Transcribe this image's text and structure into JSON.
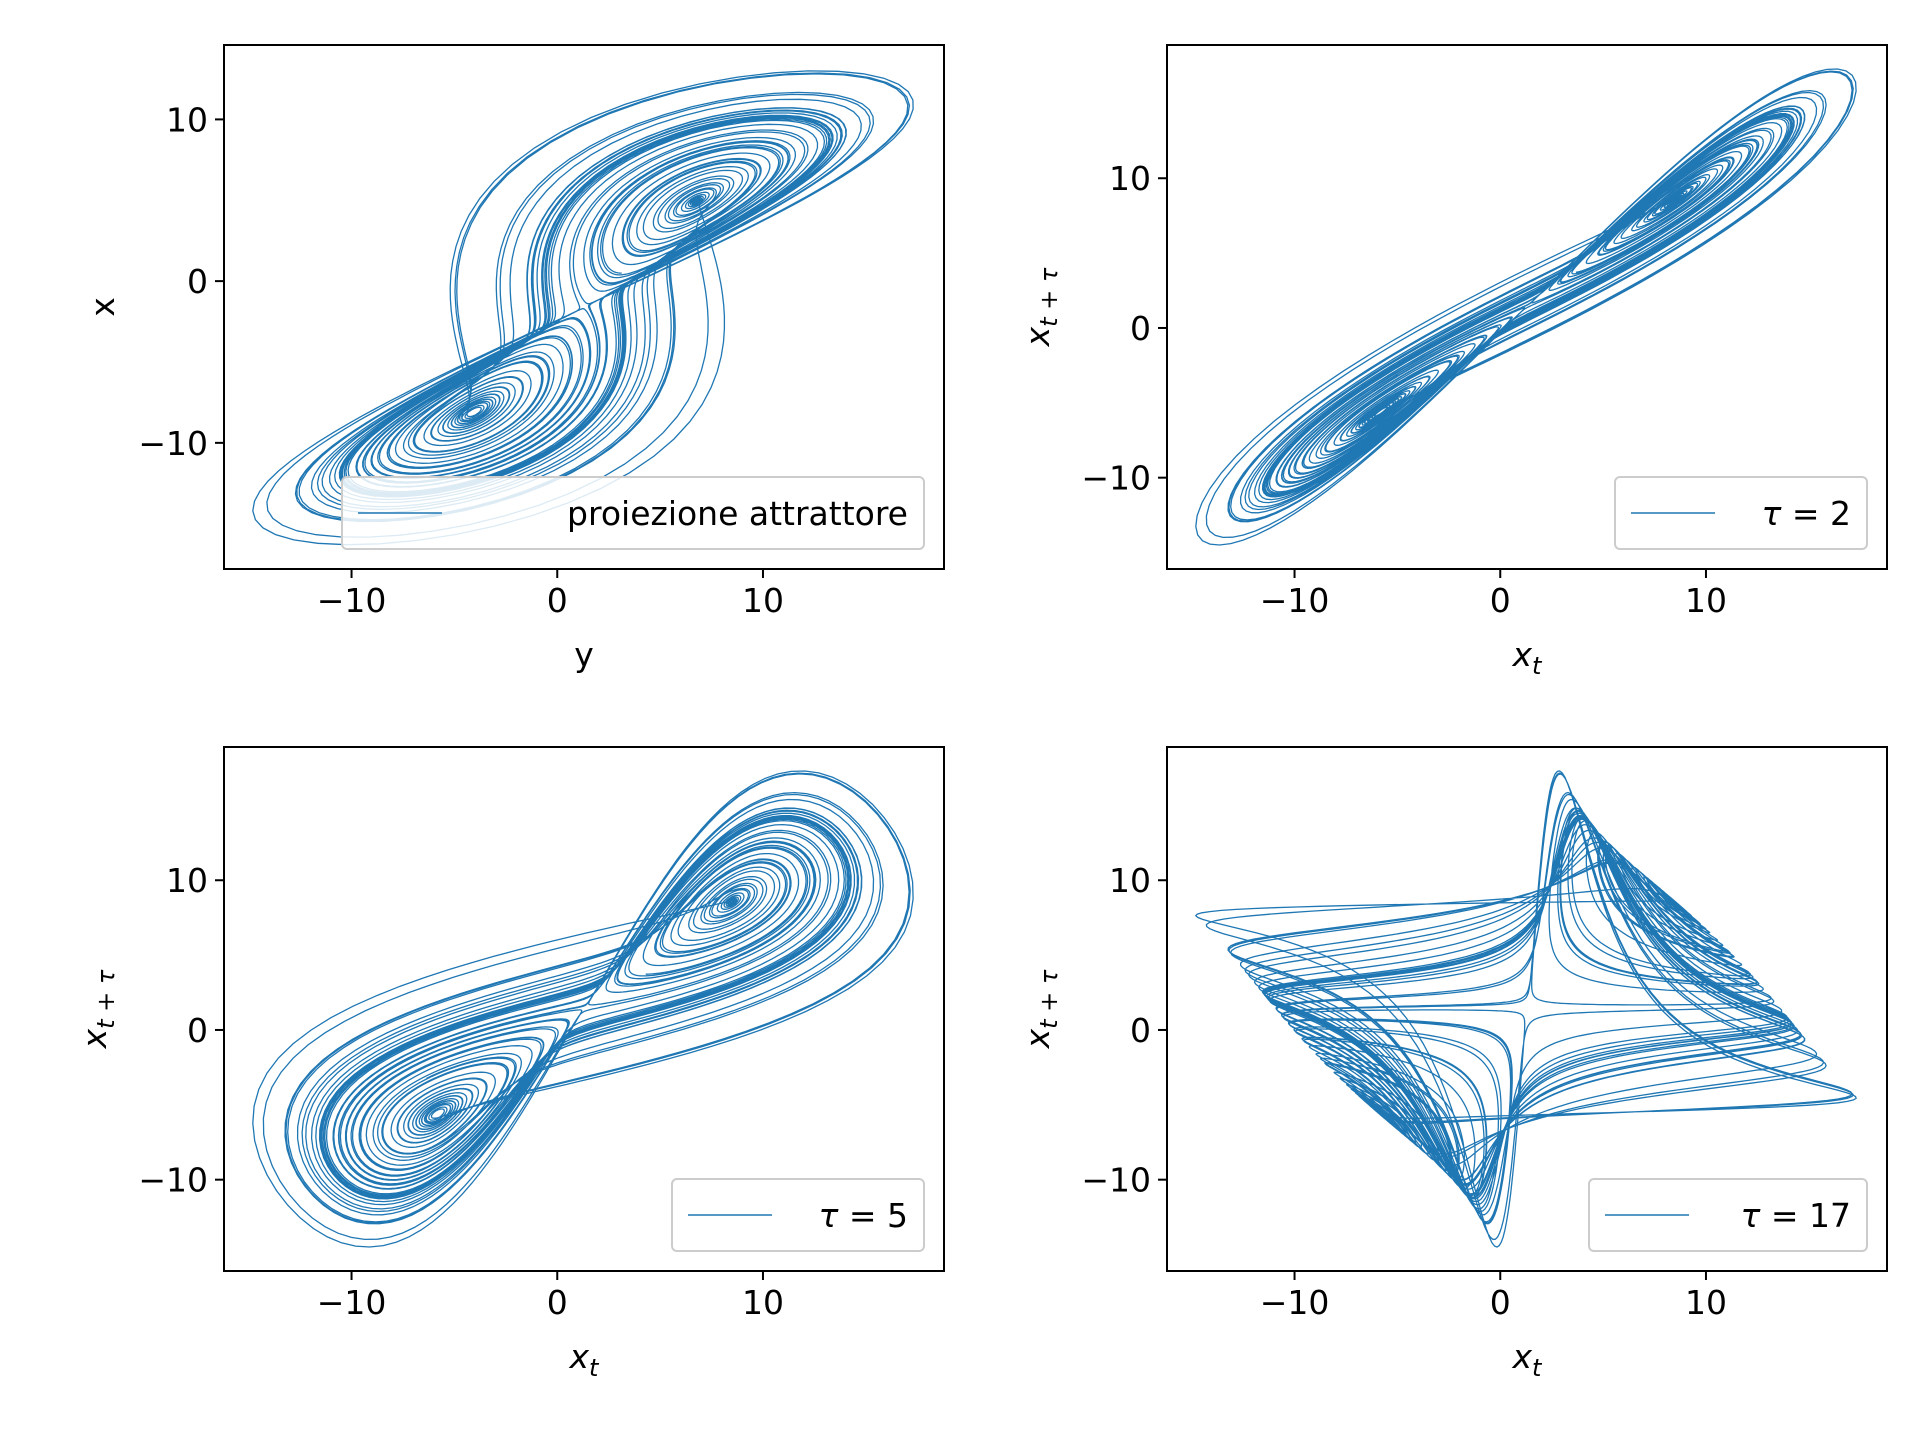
{
  "figure": {
    "line_color": "#1f77b4",
    "background": "#ffffff"
  },
  "chart_data": [
    {
      "type": "line",
      "panel": "top-left",
      "xlabel": "y",
      "ylabel": "x",
      "xlim": [
        -16.2,
        18.8
      ],
      "ylim": [
        -17.8,
        14.6
      ],
      "xticks": [
        -10,
        0,
        10
      ],
      "xtick_labels": [
        "−10",
        "0",
        "10"
      ],
      "yticks": [
        -10,
        0,
        10
      ],
      "ytick_labels": [
        "−10",
        "0",
        "10"
      ],
      "legend": {
        "label": "proiezione attrattore",
        "placement": "lower right"
      },
      "series": [
        {
          "name": "proiezione attrattore",
          "curve": "attractor_projection",
          "x_range": [
            -14.8,
            17.3
          ],
          "y_range": [
            -16.3,
            13.0
          ],
          "start": [
            -3.3,
            -1.3
          ]
        }
      ]
    },
    {
      "type": "line",
      "panel": "top-right",
      "xlabel": "x_t",
      "ylabel": "x_{t+τ}",
      "xlim": [
        -16.2,
        18.8
      ],
      "ylim": [
        -16.1,
        18.9
      ],
      "xticks": [
        -10,
        0,
        10
      ],
      "xtick_labels": [
        "−10",
        "0",
        "10"
      ],
      "yticks": [
        -10,
        0,
        10
      ],
      "ytick_labels": [
        "−10",
        "0",
        "10"
      ],
      "legend": {
        "label": "τ = 2",
        "tau": 2,
        "placement": "lower right"
      },
      "series": [
        {
          "name": "τ = 2",
          "curve": "delay_embedding",
          "tau": 2,
          "x_range": [
            -14.8,
            17.3
          ],
          "y_range": [
            -14.5,
            17.3
          ]
        }
      ]
    },
    {
      "type": "line",
      "panel": "bottom-left",
      "xlabel": "x_t",
      "ylabel": "x_{t+τ}",
      "xlim": [
        -16.2,
        18.8
      ],
      "ylim": [
        -16.1,
        18.9
      ],
      "xticks": [
        -10,
        0,
        10
      ],
      "xtick_labels": [
        "−10",
        "0",
        "10"
      ],
      "yticks": [
        -10,
        0,
        10
      ],
      "ytick_labels": [
        "−10",
        "0",
        "10"
      ],
      "legend": {
        "label": "τ = 5",
        "tau": 5,
        "placement": "lower right"
      },
      "series": [
        {
          "name": "τ = 5",
          "curve": "delay_embedding",
          "tau": 5,
          "x_range": [
            -14.8,
            17.3
          ],
          "y_range": [
            -14.5,
            17.3
          ]
        }
      ]
    },
    {
      "type": "line",
      "panel": "bottom-right",
      "xlabel": "x_t",
      "ylabel": "x_{t+τ}",
      "xlim": [
        -16.2,
        18.8
      ],
      "ylim": [
        -16.1,
        18.9
      ],
      "xticks": [
        -10,
        0,
        10
      ],
      "xtick_labels": [
        "−10",
        "0",
        "10"
      ],
      "yticks": [
        -10,
        0,
        10
      ],
      "ytick_labels": [
        "−10",
        "0",
        "10"
      ],
      "legend": {
        "label": "τ = 17",
        "tau": 17,
        "placement": "lower right"
      },
      "series": [
        {
          "name": "τ = 17",
          "curve": "delay_embedding",
          "tau": 17,
          "x_range": [
            -14.8,
            17.3
          ],
          "y_range": [
            -14.5,
            17.3
          ]
        }
      ]
    }
  ]
}
